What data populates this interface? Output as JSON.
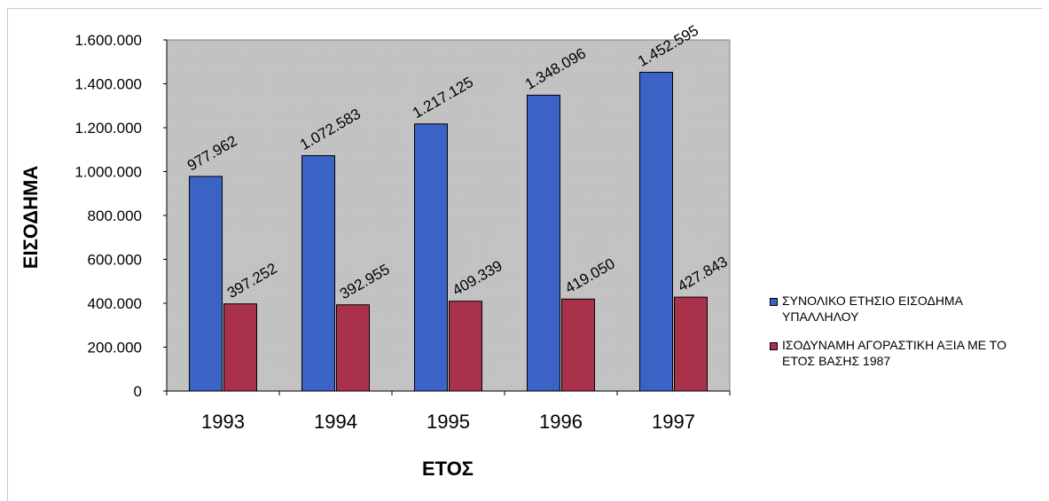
{
  "chart_data": {
    "type": "bar",
    "categories": [
      "1993",
      "1994",
      "1995",
      "1996",
      "1997"
    ],
    "series": [
      {
        "name": "ΣΥΝΟΛΙΚΟ ΕΤΗΣΙΟ ΕΙΣΟΔΗΜΑ ΥΠΑΛΛΗΛΟΥ",
        "values": [
          977962,
          1072583,
          1217125,
          1348096,
          1452595
        ],
        "labels": [
          "977.962",
          "1.072.583",
          "1.217.125",
          "1.348.096",
          "1.452.595"
        ],
        "color": "#3b63c6"
      },
      {
        "name": "ΙΣΟΔΥΝΑΜΗ ΑΓΟΡΑΣΤΙΚΗ ΑΞΙΑ ΜΕ ΤΟ ΕΤΟΣ ΒΑΣΗΣ 1987",
        "values": [
          397252,
          392955,
          409339,
          419050,
          427843
        ],
        "labels": [
          "397.252",
          "392.955",
          "409.339",
          "419.050",
          "427.843"
        ],
        "color": "#a9324a"
      }
    ],
    "xlabel": "ΕΤΟΣ",
    "ylabel": "ΕΙΣΟΔΗΜΑ",
    "ylim": [
      0,
      1600000
    ],
    "yticks": [
      0,
      200000,
      400000,
      600000,
      800000,
      1000000,
      1200000,
      1400000,
      1600000
    ],
    "ytick_labels": [
      "0",
      "200.000",
      "400.000",
      "600.000",
      "800.000",
      "1.000.000",
      "1.200.000",
      "1.400.000",
      "1.600.000"
    ],
    "grid": false,
    "legend_position": "right",
    "plot_background": "#c0c0c0"
  }
}
